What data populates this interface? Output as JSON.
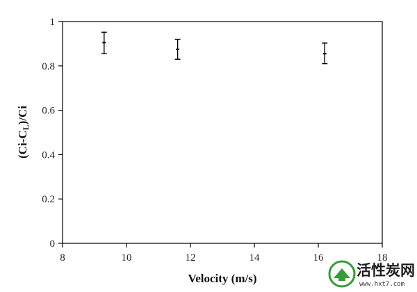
{
  "chart_data": {
    "type": "scatter",
    "title": "",
    "xlabel": "Velocity (m/s)",
    "ylabel": "(Ci-CL)/Ci",
    "ylabel_parts": {
      "a": "(Ci-C",
      "sub": "L",
      "b": ")/Ci"
    },
    "xlim": [
      8,
      18
    ],
    "ylim": [
      0,
      1
    ],
    "xticks": [
      "8",
      "10",
      "12",
      "14",
      "16",
      "18"
    ],
    "xtick_values": [
      8,
      10,
      12,
      14,
      16,
      18
    ],
    "yticks": [
      "0",
      "0.2",
      "0.4",
      "0.6",
      "0.8",
      "1"
    ],
    "ytick_values": [
      0,
      0.2,
      0.4,
      0.6,
      0.8,
      1
    ],
    "grid": false,
    "points": [
      {
        "x": 9.3,
        "y": 0.905,
        "err_low": 0.855,
        "err_high": 0.952
      },
      {
        "x": 11.6,
        "y": 0.875,
        "err_low": 0.83,
        "err_high": 0.92
      },
      {
        "x": 16.2,
        "y": 0.855,
        "err_low": 0.81,
        "err_high": 0.903
      }
    ]
  },
  "watermark": {
    "chinese": "活性炭网",
    "url": "www.hxt7.com"
  },
  "colors": {
    "axis": "#000000",
    "marker": "#000000",
    "logo": "#3a9a3a"
  }
}
